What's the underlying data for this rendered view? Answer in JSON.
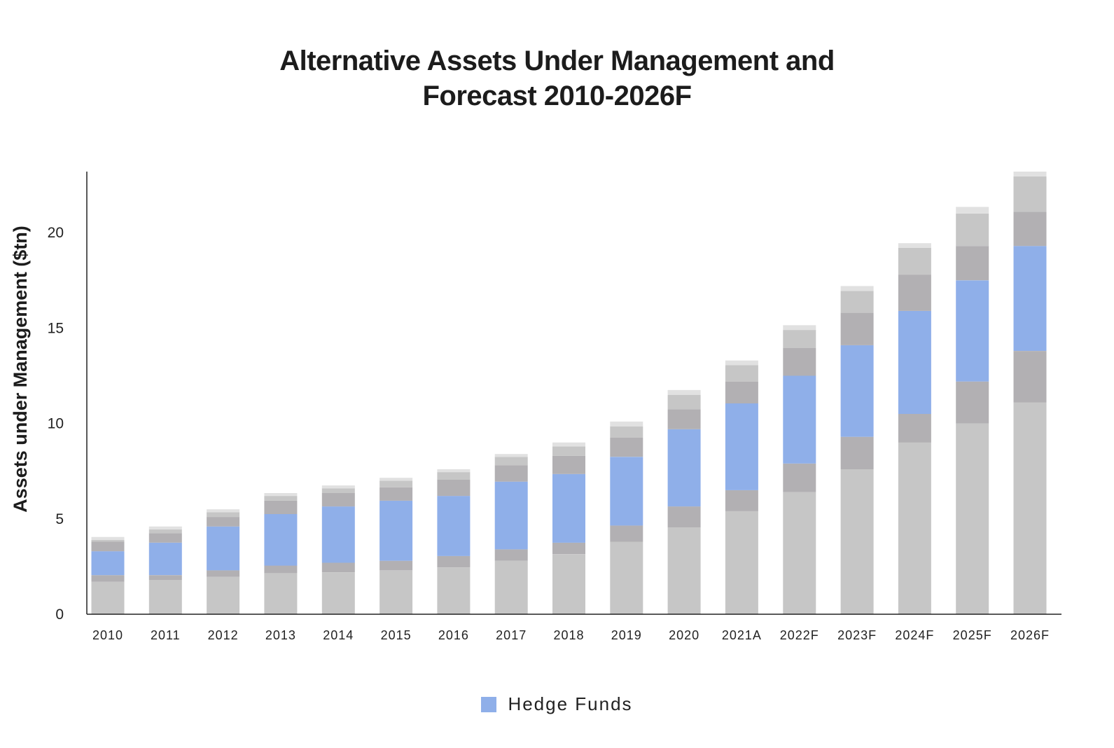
{
  "chart_data": {
    "type": "bar",
    "stacked": true,
    "title": [
      "Alternative Assets Under Management and",
      "Forecast 2010-2026F"
    ],
    "xlabel": "",
    "ylabel": "Assets under Management ($tn)",
    "ylim": [
      0,
      23.2
    ],
    "yticks": [
      "0",
      "5",
      "10",
      "15",
      "20"
    ],
    "ytick_values": [
      0,
      5,
      10,
      15,
      20
    ],
    "categories": [
      "2010",
      "2011",
      "2012",
      "2013",
      "2014",
      "2015",
      "2016",
      "2017",
      "2018",
      "2019",
      "2020",
      "2021A",
      "2022F",
      "2023F",
      "2024F",
      "2025F",
      "2026F"
    ],
    "series": [
      {
        "name": "",
        "color": "#c6c6c6",
        "values": [
          1.7,
          1.8,
          1.95,
          2.15,
          2.2,
          2.3,
          2.45,
          2.8,
          3.15,
          3.8,
          4.55,
          5.4,
          6.4,
          7.6,
          9.0,
          10.0,
          11.1
        ]
      },
      {
        "name": "",
        "color": "#b2b0b3",
        "values": [
          0.35,
          0.25,
          0.35,
          0.4,
          0.5,
          0.5,
          0.6,
          0.6,
          0.6,
          0.85,
          1.1,
          1.1,
          1.5,
          1.7,
          1.5,
          2.2,
          2.7
        ]
      },
      {
        "name": "Hedge Funds",
        "color": "#8fafe9",
        "values": [
          1.25,
          1.7,
          2.3,
          2.7,
          2.95,
          3.15,
          3.15,
          3.55,
          3.6,
          3.6,
          4.05,
          4.55,
          4.6,
          4.8,
          5.4,
          5.3,
          5.5
        ]
      },
      {
        "name": "",
        "color": "#b2b0b3",
        "values": [
          0.5,
          0.5,
          0.5,
          0.7,
          0.7,
          0.7,
          0.85,
          0.85,
          0.95,
          1.0,
          1.05,
          1.15,
          1.45,
          1.7,
          1.9,
          1.8,
          1.8
        ]
      },
      {
        "name": "",
        "color": "#c6c6c6",
        "values": [
          0.1,
          0.2,
          0.25,
          0.25,
          0.25,
          0.35,
          0.4,
          0.45,
          0.5,
          0.6,
          0.75,
          0.85,
          0.95,
          1.15,
          1.4,
          1.7,
          1.85
        ]
      },
      {
        "name": "",
        "color": "#e1e1e1",
        "values": [
          0.15,
          0.15,
          0.15,
          0.15,
          0.15,
          0.15,
          0.15,
          0.15,
          0.2,
          0.25,
          0.25,
          0.25,
          0.25,
          0.25,
          0.25,
          0.35,
          0.25
        ]
      }
    ],
    "legend": {
      "position": "bottom-center",
      "entries": [
        "Hedge Funds"
      ]
    },
    "grid": false
  }
}
